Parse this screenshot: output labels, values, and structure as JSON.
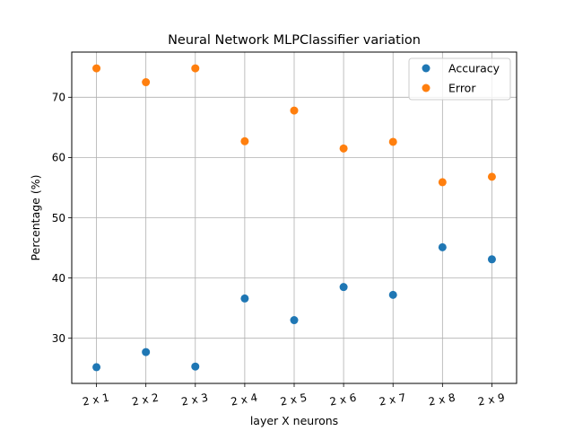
{
  "chart_data": {
    "type": "scatter",
    "title": "Neural Network MLPClassifier variation",
    "xlabel": "layer X neurons",
    "ylabel": "Percentage (%)",
    "categories": [
      "2 x 1",
      "2 x 2",
      "2 x 3",
      "2 x 4",
      "2 x 5",
      "2 x 6",
      "2 x 7",
      "2 x 8",
      "2 x 9"
    ],
    "series": [
      {
        "name": "Accuracy",
        "color": "#1f77b4",
        "values": [
          25.2,
          27.7,
          25.3,
          36.6,
          33.0,
          38.5,
          37.2,
          45.1,
          43.1
        ]
      },
      {
        "name": "Error",
        "color": "#ff7f0e",
        "values": [
          74.8,
          72.5,
          74.8,
          62.7,
          67.8,
          61.5,
          62.6,
          55.9,
          56.8
        ]
      }
    ],
    "yticks": [
      30,
      40,
      50,
      60,
      70
    ],
    "ylim": [
      22.5,
      77.5
    ],
    "grid": true,
    "legend": "top-right"
  }
}
